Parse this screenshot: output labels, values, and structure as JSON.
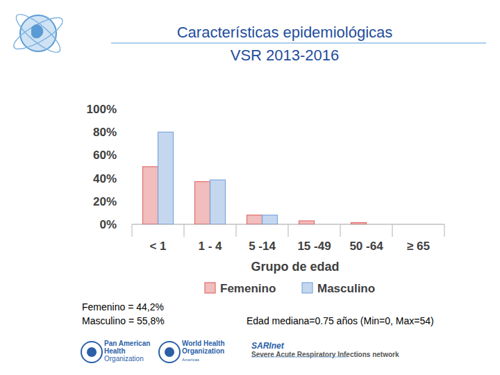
{
  "chart_data": {
    "type": "bar",
    "title": "Características epidemiológicas",
    "subtitle": "VSR 2013-2016",
    "x_label": "Grupo de edad",
    "categories": [
      "< 1",
      "1 - 4",
      "5 -14",
      "15 -49",
      "50 -64",
      "≥ 65"
    ],
    "series": [
      {
        "name": "Femenino",
        "color": "#e06c6c",
        "values": [
          50,
          37,
          8,
          3,
          1.5,
          0
        ]
      },
      {
        "name": "Masculino",
        "color": "#7ea6dc",
        "values": [
          80,
          38.5,
          8,
          0,
          0,
          0
        ]
      }
    ],
    "ylim": [
      0,
      100
    ],
    "yticks": [
      {
        "value": 0,
        "label": "0%"
      },
      {
        "value": 20,
        "label": "20%"
      },
      {
        "value": 40,
        "label": "40%"
      },
      {
        "value": 60,
        "label": "60%"
      },
      {
        "value": 80,
        "label": "80%"
      },
      {
        "value": 100,
        "label": "100%"
      }
    ],
    "grid": false,
    "legend": "bottom",
    "annotations": [
      "Femenino = 44,2%",
      "Masculino = 55,8%",
      "Edad mediana=0.75 años (Min=0, Max=54)"
    ]
  },
  "logos": [
    [
      "Pan American",
      "Health",
      "Organization"
    ],
    [
      "World Health",
      "Organization",
      "Americas"
    ],
    [
      "SARInet",
      "Severe Acute Respiratory Infections network"
    ]
  ]
}
